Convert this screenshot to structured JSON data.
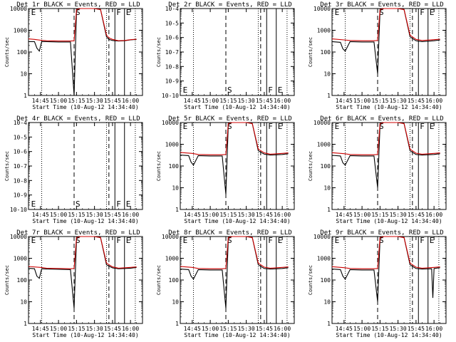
{
  "figure": {
    "background": "#ffffff",
    "events_color": "#000000",
    "lld_color": "#cc0000",
    "xlabel": "Start Time (10-Aug-12 14:34:40)",
    "ylabel": "Counts/sec",
    "marker_labels": [
      "E",
      "S",
      "F",
      "E"
    ]
  },
  "chart_data": [
    {
      "type": "line",
      "title": "Det 1r BLACK = Events, RED = LLD",
      "has_data": true,
      "yscale": "log",
      "ylim": [
        1,
        10000
      ],
      "yticks": [
        "1",
        "10",
        "100",
        "1000",
        "10000"
      ],
      "xticks": [
        "14:45",
        "15:00",
        "15:15",
        "15:30",
        "15:45",
        "16:00"
      ],
      "series": [
        {
          "name": "Events",
          "color": "#000000",
          "x": [
            "14:35",
            "14:40",
            "14:42",
            "14:44",
            "14:46",
            "14:50",
            "15:00",
            "15:10",
            "15:13",
            "15:15",
            "15:18",
            "15:20",
            "15:25",
            "15:30",
            "15:35",
            "15:40",
            "15:42",
            "15:45",
            "15:50",
            "15:55",
            "16:00",
            "16:05"
          ],
          "y": [
            300,
            300,
            150,
            110,
            300,
            300,
            290,
            290,
            1,
            8000,
            10000,
            10000,
            10000,
            10000,
            9000,
            500,
            380,
            340,
            320,
            330,
            360,
            380
          ]
        },
        {
          "name": "LLD",
          "color": "#cc0000",
          "x": [
            "14:35",
            "14:40",
            "14:45",
            "14:50",
            "15:00",
            "15:10",
            "15:13",
            "15:15",
            "15:18",
            "15:20",
            "15:25",
            "15:30",
            "15:35",
            "15:40",
            "15:42",
            "15:45",
            "15:50",
            "15:55",
            "16:00",
            "16:05"
          ],
          "y": [
            400,
            380,
            350,
            330,
            320,
            320,
            330,
            9000,
            10000,
            10000,
            10000,
            10000,
            9000,
            600,
            450,
            380,
            330,
            340,
            370,
            390
          ]
        }
      ]
    },
    {
      "type": "line",
      "title": "Det 2r BLACK = Events, RED = LLD",
      "has_data": false,
      "yscale": "log",
      "ylim": [
        1e-10,
        0.0001
      ],
      "yticks": [
        "10-10",
        "10-9",
        "10-8",
        "10-7",
        "10-6",
        "10-5",
        "10-4"
      ],
      "xticks": [
        "14:45",
        "15:00",
        "15:15",
        "15:30",
        "15:45",
        "16:00"
      ],
      "series": []
    },
    {
      "type": "line",
      "title": "Det 3r BLACK = Events, RED = LLD",
      "has_data": true,
      "yscale": "log",
      "ylim": [
        1,
        10000
      ],
      "yticks": [
        "1",
        "10",
        "100",
        "1000",
        "10000"
      ],
      "xticks": [
        "14:45",
        "15:00",
        "15:15",
        "15:30",
        "15:45",
        "16:00"
      ],
      "series": [
        {
          "name": "Events",
          "color": "#000000",
          "x": [
            "14:35",
            "14:42",
            "14:44",
            "14:46",
            "14:50",
            "15:00",
            "15:10",
            "15:13",
            "15:15",
            "15:18",
            "15:25",
            "15:30",
            "15:35",
            "15:40",
            "15:45",
            "15:50",
            "16:00",
            "16:05"
          ],
          "y": [
            300,
            280,
            140,
            110,
            300,
            290,
            290,
            10,
            8000,
            10000,
            10000,
            10000,
            9000,
            500,
            330,
            300,
            330,
            360
          ]
        },
        {
          "name": "LLD",
          "color": "#cc0000",
          "x": [
            "14:35",
            "14:45",
            "14:50",
            "15:00",
            "15:10",
            "15:13",
            "15:15",
            "15:18",
            "15:25",
            "15:30",
            "15:35",
            "15:40",
            "15:45",
            "15:50",
            "16:00",
            "16:05"
          ],
          "y": [
            400,
            360,
            340,
            330,
            330,
            340,
            9000,
            10000,
            10000,
            10000,
            9000,
            600,
            380,
            340,
            370,
            390
          ]
        }
      ]
    },
    {
      "type": "line",
      "title": "Det 4r BLACK = Events, RED = LLD",
      "has_data": false,
      "yscale": "log",
      "ylim": [
        1e-10,
        0.0001
      ],
      "yticks": [
        "10-10",
        "10-9",
        "10-8",
        "10-7",
        "10-6",
        "10-5",
        "10-4"
      ],
      "xticks": [
        "14:45",
        "15:00",
        "15:15",
        "15:30",
        "15:45",
        "16:00"
      ],
      "series": []
    },
    {
      "type": "line",
      "title": "Det 5r BLACK = Events, RED = LLD",
      "has_data": true,
      "yscale": "log",
      "ylim": [
        1,
        10000
      ],
      "yticks": [
        "1",
        "10",
        "100",
        "1000",
        "10000"
      ],
      "xticks": [
        "14:45",
        "15:00",
        "15:15",
        "15:30",
        "15:45",
        "16:00"
      ],
      "series": [
        {
          "name": "Events",
          "color": "#000000",
          "x": [
            "14:35",
            "14:42",
            "14:44",
            "14:46",
            "14:50",
            "15:00",
            "15:10",
            "15:13",
            "15:15",
            "15:18",
            "15:25",
            "15:30",
            "15:35",
            "15:40",
            "15:45",
            "15:50",
            "16:00",
            "16:05"
          ],
          "y": [
            320,
            300,
            150,
            110,
            300,
            290,
            290,
            5,
            8000,
            10000,
            10000,
            10000,
            9000,
            500,
            350,
            320,
            340,
            370
          ]
        },
        {
          "name": "LLD",
          "color": "#cc0000",
          "x": [
            "14:35",
            "14:45",
            "14:50",
            "15:00",
            "15:10",
            "15:13",
            "15:15",
            "15:18",
            "15:25",
            "15:30",
            "15:35",
            "15:40",
            "15:45",
            "15:50",
            "16:00",
            "16:05"
          ],
          "y": [
            420,
            380,
            340,
            330,
            330,
            340,
            9000,
            10000,
            10000,
            10000,
            9000,
            600,
            400,
            350,
            380,
            400
          ]
        }
      ]
    },
    {
      "type": "line",
      "title": "Det 6r BLACK = Events, RED = LLD",
      "has_data": true,
      "yscale": "log",
      "ylim": [
        1,
        10000
      ],
      "yticks": [
        "1",
        "10",
        "100",
        "1000",
        "10000"
      ],
      "xticks": [
        "14:45",
        "15:00",
        "15:15",
        "15:30",
        "15:45",
        "16:00"
      ],
      "series": [
        {
          "name": "Events",
          "color": "#000000",
          "x": [
            "14:35",
            "14:42",
            "14:44",
            "14:46",
            "14:50",
            "15:00",
            "15:10",
            "15:13",
            "15:15",
            "15:18",
            "15:25",
            "15:30",
            "15:35",
            "15:40",
            "15:45",
            "15:50",
            "16:00",
            "16:05"
          ],
          "y": [
            310,
            290,
            140,
            110,
            300,
            290,
            290,
            10,
            8000,
            10000,
            10000,
            10000,
            9000,
            500,
            340,
            320,
            340,
            370
          ]
        },
        {
          "name": "LLD",
          "color": "#cc0000",
          "x": [
            "14:35",
            "14:45",
            "14:50",
            "15:00",
            "15:10",
            "15:13",
            "15:15",
            "15:18",
            "15:25",
            "15:30",
            "15:35",
            "15:40",
            "15:45",
            "15:50",
            "16:00",
            "16:05"
          ],
          "y": [
            410,
            370,
            340,
            330,
            330,
            340,
            9000,
            10000,
            10000,
            10000,
            9000,
            600,
            390,
            350,
            380,
            400
          ]
        }
      ]
    },
    {
      "type": "line",
      "title": "Det 7r BLACK = Events, RED = LLD",
      "has_data": true,
      "yscale": "log",
      "ylim": [
        1,
        10000
      ],
      "yticks": [
        "1",
        "10",
        "100",
        "1000",
        "10000"
      ],
      "xticks": [
        "14:45",
        "15:00",
        "15:15",
        "15:30",
        "15:45",
        "16:00"
      ],
      "series": [
        {
          "name": "Events",
          "color": "#000000",
          "x": [
            "14:35",
            "14:40",
            "14:42",
            "14:44",
            "14:46",
            "14:50",
            "15:00",
            "15:10",
            "15:13",
            "15:15",
            "15:18",
            "15:25",
            "15:30",
            "15:35",
            "15:40",
            "15:45",
            "15:50",
            "16:00",
            "16:05"
          ],
          "y": [
            350,
            330,
            150,
            120,
            330,
            320,
            310,
            300,
            5,
            8000,
            10000,
            10000,
            10000,
            9000,
            500,
            360,
            330,
            350,
            380
          ]
        },
        {
          "name": "LLD",
          "color": "#cc0000",
          "x": [
            "14:35",
            "14:45",
            "14:50",
            "15:00",
            "15:10",
            "15:13",
            "15:15",
            "15:18",
            "15:25",
            "15:30",
            "15:35",
            "15:40",
            "15:45",
            "15:50",
            "16:00",
            "16:05"
          ],
          "y": [
            420,
            380,
            350,
            340,
            330,
            340,
            9000,
            10000,
            10000,
            10000,
            9000,
            600,
            400,
            350,
            380,
            400
          ]
        }
      ]
    },
    {
      "type": "line",
      "title": "Det 8r BLACK = Events, RED = LLD",
      "has_data": true,
      "yscale": "log",
      "ylim": [
        1,
        10000
      ],
      "yticks": [
        "1",
        "10",
        "100",
        "1000",
        "10000"
      ],
      "xticks": [
        "14:45",
        "15:00",
        "15:15",
        "15:30",
        "15:45",
        "16:00"
      ],
      "series": [
        {
          "name": "Events",
          "color": "#000000",
          "x": [
            "14:35",
            "14:42",
            "14:44",
            "14:46",
            "14:50",
            "15:00",
            "15:10",
            "15:13",
            "15:15",
            "15:18",
            "15:25",
            "15:30",
            "15:35",
            "15:40",
            "15:45",
            "15:50",
            "16:00",
            "16:05"
          ],
          "y": [
            320,
            300,
            150,
            110,
            300,
            290,
            290,
            5,
            8000,
            10000,
            10000,
            10000,
            9000,
            500,
            340,
            320,
            340,
            370
          ]
        },
        {
          "name": "LLD",
          "color": "#cc0000",
          "x": [
            "14:35",
            "14:45",
            "14:50",
            "15:00",
            "15:10",
            "15:13",
            "15:15",
            "15:18",
            "15:25",
            "15:30",
            "15:35",
            "15:40",
            "15:45",
            "15:50",
            "16:00",
            "16:05"
          ],
          "y": [
            420,
            380,
            340,
            330,
            330,
            340,
            9000,
            10000,
            10000,
            10000,
            9000,
            600,
            390,
            350,
            380,
            400
          ]
        }
      ]
    },
    {
      "type": "line",
      "title": "Det 9r BLACK = Events, RED = LLD",
      "has_data": true,
      "yscale": "log",
      "ylim": [
        1,
        10000
      ],
      "yticks": [
        "1",
        "10",
        "100",
        "1000",
        "10000"
      ],
      "xticks": [
        "14:45",
        "15:00",
        "15:15",
        "15:30",
        "15:45",
        "16:00"
      ],
      "series": [
        {
          "name": "Events",
          "color": "#000000",
          "x": [
            "14:35",
            "14:42",
            "14:44",
            "14:46",
            "14:50",
            "15:00",
            "15:10",
            "15:13",
            "15:15",
            "15:18",
            "15:25",
            "15:30",
            "15:35",
            "15:40",
            "15:45",
            "15:50",
            "15:58",
            "15:59",
            "16:00",
            "16:05"
          ],
          "y": [
            320,
            300,
            150,
            110,
            300,
            290,
            290,
            10,
            8000,
            10000,
            10000,
            10000,
            9000,
            500,
            340,
            320,
            330,
            15,
            340,
            370
          ]
        },
        {
          "name": "LLD",
          "color": "#cc0000",
          "x": [
            "14:35",
            "14:45",
            "14:50",
            "15:00",
            "15:10",
            "15:13",
            "15:15",
            "15:18",
            "15:25",
            "15:30",
            "15:35",
            "15:40",
            "15:45",
            "15:50",
            "16:00",
            "16:05"
          ],
          "y": [
            410,
            370,
            340,
            330,
            330,
            340,
            9000,
            10000,
            10000,
            10000,
            9000,
            600,
            390,
            350,
            380,
            400
          ]
        }
      ]
    }
  ]
}
